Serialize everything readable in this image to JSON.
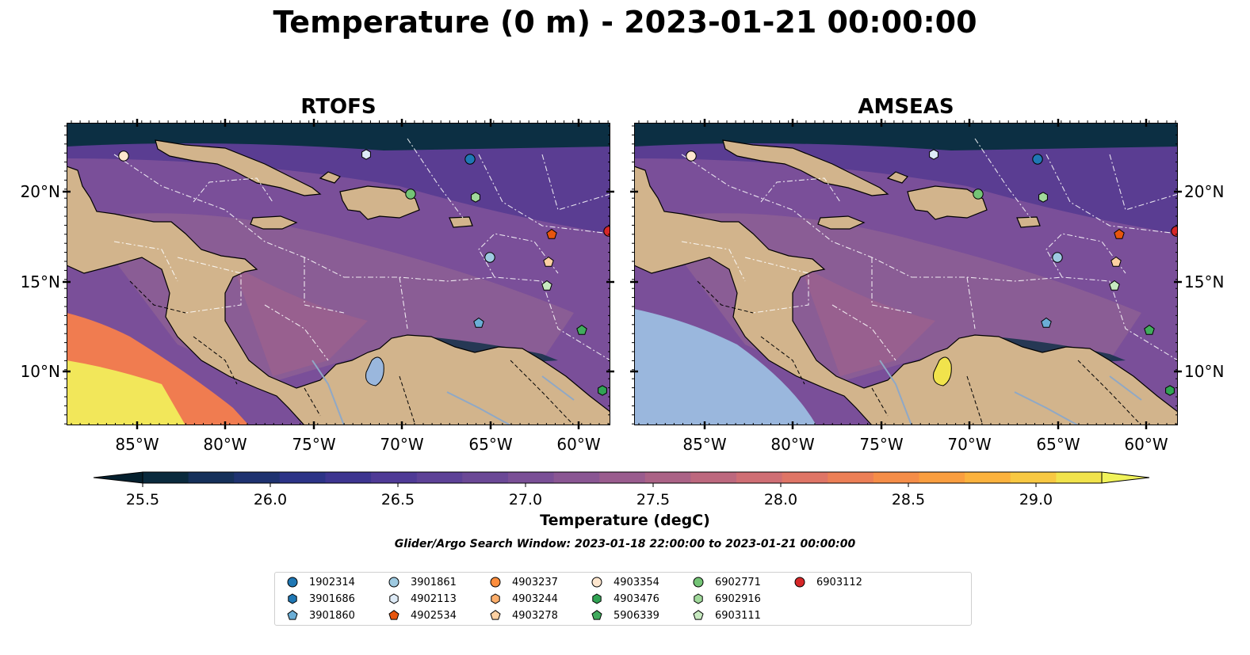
{
  "title": "Temperature (0 m) - 2023-01-21 00:00:00",
  "panels": [
    {
      "title": "RTOFS",
      "colors": [
        "#7a4f99",
        "#8c5e95",
        "#a4628a",
        "#5a3d92"
      ]
    },
    {
      "title": "AMSEAS",
      "colors": [
        "#7a4f99",
        "#8c5e95",
        "#a4628a",
        "#5a3d92"
      ]
    }
  ],
  "axes": {
    "lon_ticks": [
      "85°W",
      "80°W",
      "75°W",
      "70°W",
      "65°W",
      "60°W"
    ],
    "lat_ticks": [
      "20°N",
      "15°N",
      "10°N"
    ]
  },
  "colorbar": {
    "ticks": [
      "25.5",
      "26.0",
      "26.5",
      "27.0",
      "27.5",
      "28.0",
      "28.5",
      "29.0"
    ],
    "label": "Temperature (degC)",
    "colors": [
      "#0a2a3d",
      "#15305a",
      "#1e3270",
      "#2c3387",
      "#3d3590",
      "#4f3a96",
      "#5d4197",
      "#6b4896",
      "#7a4f96",
      "#8a5693",
      "#9a5c8e",
      "#ab6286",
      "#bd687e",
      "#cf6e74",
      "#df7566",
      "#ec7f56",
      "#f58d48",
      "#fa9e3f",
      "#fbb23d",
      "#f8c842",
      "#f1e34c"
    ],
    "extend_low": "#05202e",
    "extend_high": "#f1f35a"
  },
  "search_window": "Glider/Argo Search Window: 2023-01-18 22:00:00 to 2023-01-21 00:00:00",
  "legend": [
    {
      "label": "1902314",
      "marker": "circle",
      "color": "#1f77b4"
    },
    {
      "label": "3901686",
      "marker": "hexagon",
      "color": "#1f77b4"
    },
    {
      "label": "3901860",
      "marker": "pentagon",
      "color": "#6baed6"
    },
    {
      "label": "3901861",
      "marker": "circle",
      "color": "#9ecae1"
    },
    {
      "label": "4902113",
      "marker": "hexagon",
      "color": "#deebf7"
    },
    {
      "label": "4902534",
      "marker": "pentagon",
      "color": "#e6550d"
    },
    {
      "label": "4903237",
      "marker": "circle",
      "color": "#fd8d3c"
    },
    {
      "label": "4903244",
      "marker": "hexagon",
      "color": "#fdae6b"
    },
    {
      "label": "4903278",
      "marker": "pentagon",
      "color": "#fdd0a2"
    },
    {
      "label": "4903354",
      "marker": "circle",
      "color": "#fee6ce"
    },
    {
      "label": "4903476",
      "marker": "hexagon",
      "color": "#31a354"
    },
    {
      "label": "5906339",
      "marker": "pentagon",
      "color": "#41ab5d"
    },
    {
      "label": "6902771",
      "marker": "circle",
      "color": "#74c476"
    },
    {
      "label": "6902916",
      "marker": "hexagon",
      "color": "#a1d99b"
    },
    {
      "label": "6903111",
      "marker": "pentagon",
      "color": "#c7e9c0"
    },
    {
      "label": "6903112",
      "marker": "circle",
      "color": "#d62728"
    }
  ],
  "map_colors": {
    "land": "#d2b48c",
    "ocean_nodata": "#9ab7dd",
    "deep": "#0c2f43",
    "boundary": "#000000"
  }
}
